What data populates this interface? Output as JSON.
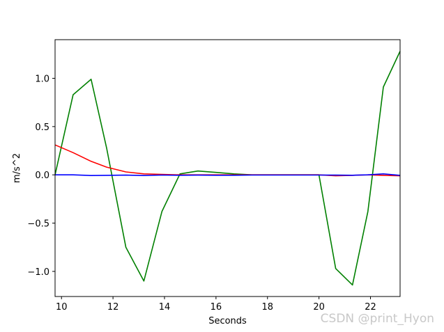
{
  "chart_data": {
    "type": "line",
    "xlabel": "Seconds",
    "ylabel": "m/s^2",
    "xlim": [
      9.75,
      23.15
    ],
    "ylim": [
      -1.26,
      1.4
    ],
    "xticks": [
      10,
      12,
      14,
      16,
      18,
      20,
      22
    ],
    "yticks": [
      -1.0,
      -0.5,
      0.0,
      0.5,
      1.0
    ],
    "ytick_labels": [
      "−1.0",
      "−0.5",
      "0.0",
      "0.5",
      "1.0"
    ],
    "grid": false,
    "series": [
      {
        "color": "#008000",
        "x": [
          9.75,
          10.45,
          11.15,
          11.75,
          12.5,
          13.2,
          13.9,
          14.6,
          15.3,
          16.0,
          16.7,
          17.4,
          18.1,
          18.8,
          19.5,
          20.0,
          20.65,
          21.3,
          21.9,
          22.5,
          23.15
        ],
        "y": [
          0.0,
          0.83,
          0.99,
          0.28,
          -0.75,
          -1.1,
          -0.38,
          0.01,
          0.04,
          0.025,
          0.01,
          0.0,
          0.0,
          0.0,
          0.0,
          0.0,
          -0.97,
          -1.14,
          -0.38,
          0.91,
          1.28
        ]
      },
      {
        "color": "#ff0000",
        "x": [
          9.75,
          10.45,
          11.15,
          11.75,
          12.5,
          13.2,
          13.9,
          14.6,
          15.3,
          16.0,
          16.7,
          17.4,
          18.1,
          18.8,
          19.5,
          20.0,
          20.65,
          21.3,
          21.9,
          22.5,
          23.15
        ],
        "y": [
          0.31,
          0.23,
          0.14,
          0.08,
          0.03,
          0.01,
          0.005,
          0.0,
          0.0,
          0.0,
          0.0,
          0.0,
          0.0,
          0.0,
          0.0,
          0.0,
          -0.01,
          -0.005,
          0.0,
          -0.005,
          -0.01
        ]
      },
      {
        "color": "#0000ff",
        "x": [
          9.75,
          10.45,
          11.15,
          11.75,
          12.5,
          13.2,
          13.9,
          14.6,
          15.3,
          16.0,
          16.7,
          17.4,
          18.1,
          18.8,
          19.5,
          20.0,
          20.65,
          21.3,
          21.9,
          22.5,
          23.15
        ],
        "y": [
          0.0,
          0.0,
          -0.007,
          -0.005,
          -0.003,
          -0.007,
          -0.002,
          -0.004,
          -0.003,
          -0.004,
          -0.004,
          -0.002,
          -0.002,
          -0.002,
          -0.002,
          -0.002,
          -0.003,
          -0.004,
          0.0,
          0.01,
          -0.005
        ]
      }
    ]
  },
  "watermark": "CSDN @print_Hyon"
}
